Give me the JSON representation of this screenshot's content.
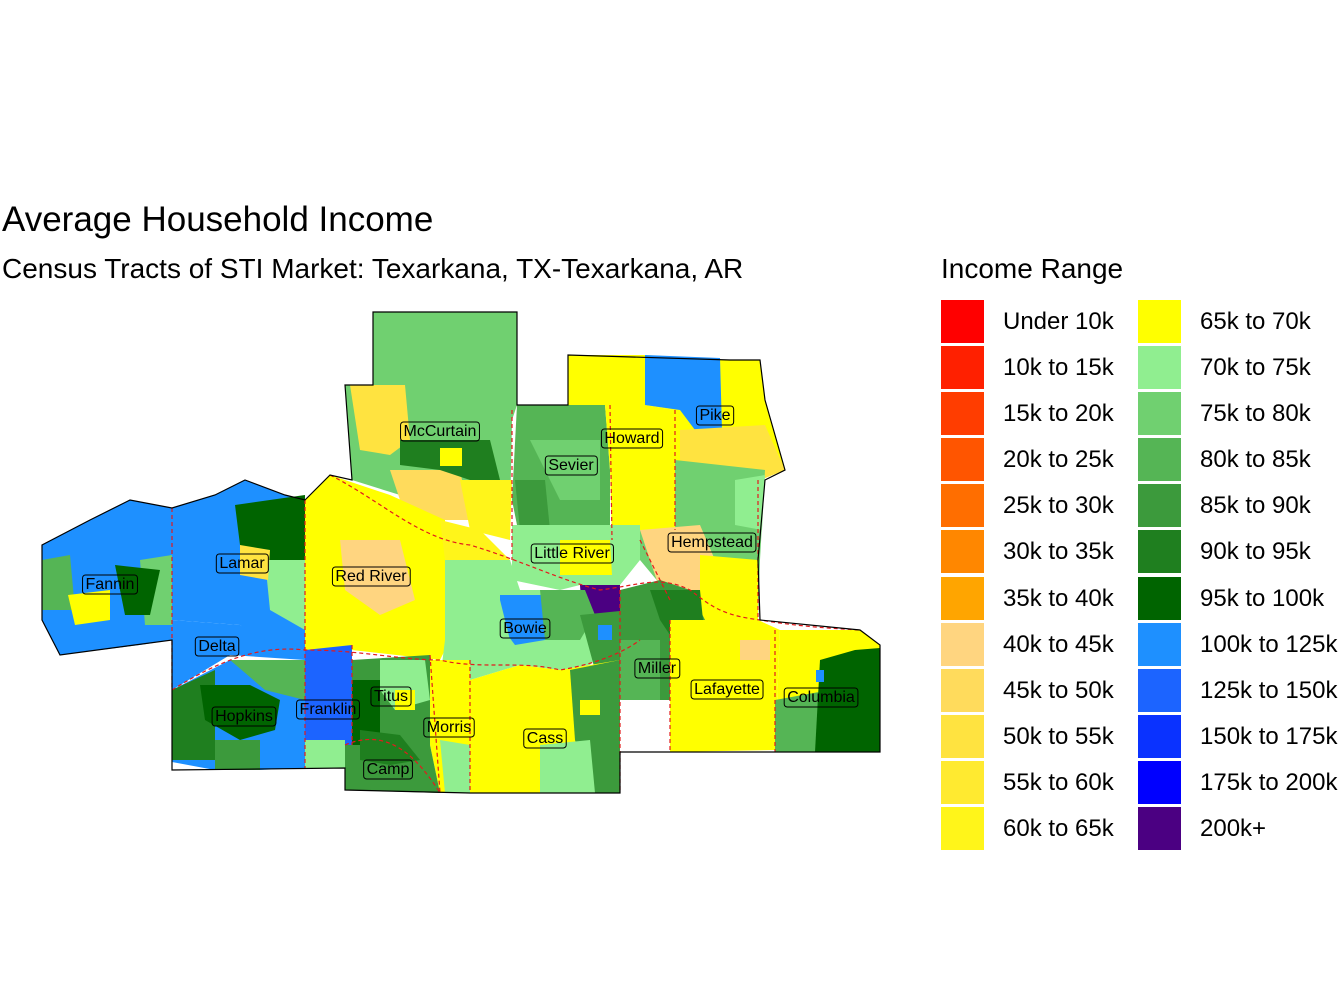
{
  "title": "Average Household Income",
  "subtitle": "Census Tracts of STI Market: Texarkana, TX-Texarkana, AR",
  "legend": {
    "title": "Income Range",
    "items": [
      {
        "label": "Under 10k",
        "color": "#FF0000"
      },
      {
        "label": "10k to 15k",
        "color": "#FF2000"
      },
      {
        "label": "15k to 20k",
        "color": "#FF3D00"
      },
      {
        "label": "20k to 25k",
        "color": "#FF5500"
      },
      {
        "label": "25k to 30k",
        "color": "#FF6E00"
      },
      {
        "label": "30k to 35k",
        "color": "#FF8700"
      },
      {
        "label": "35k to 40k",
        "color": "#FFA500"
      },
      {
        "label": "40k to 45k",
        "color": "#FFD580"
      },
      {
        "label": "45k to 50k",
        "color": "#FFDB5C"
      },
      {
        "label": "50k to 55k",
        "color": "#FFE340"
      },
      {
        "label": "55k to 60k",
        "color": "#FFEA30"
      },
      {
        "label": "60k to 65k",
        "color": "#FFF51A"
      },
      {
        "label": "65k to 70k",
        "color": "#FFFF00"
      },
      {
        "label": "70k to 75k",
        "color": "#90EE90"
      },
      {
        "label": "75k to 80k",
        "color": "#70D070"
      },
      {
        "label": "80k to 85k",
        "color": "#55B555"
      },
      {
        "label": "85k to 90k",
        "color": "#3C9A3C"
      },
      {
        "label": "90k to 95k",
        "color": "#1F7F1F"
      },
      {
        "label": "95k to 100k",
        "color": "#006400"
      },
      {
        "label": "100k to 125k",
        "color": "#1E90FF"
      },
      {
        "label": "125k to 150k",
        "color": "#1C64FF"
      },
      {
        "label": "150k to 175k",
        "color": "#0A32FF"
      },
      {
        "label": "175k to 200k",
        "color": "#0000FF"
      },
      {
        "label": "200k+",
        "color": "#4B0082"
      }
    ]
  },
  "counties": [
    {
      "name": "McCurtain"
    },
    {
      "name": "Sevier"
    },
    {
      "name": "Howard"
    },
    {
      "name": "Pike"
    },
    {
      "name": "Hempstead"
    },
    {
      "name": "Little River"
    },
    {
      "name": "Lamar"
    },
    {
      "name": "Fannin"
    },
    {
      "name": "Red River"
    },
    {
      "name": "Bowie"
    },
    {
      "name": "Delta"
    },
    {
      "name": "Miller"
    },
    {
      "name": "Lafayette"
    },
    {
      "name": "Columbia"
    },
    {
      "name": "Titus"
    },
    {
      "name": "Franklin"
    },
    {
      "name": "Hopkins"
    },
    {
      "name": "Morris"
    },
    {
      "name": "Cass"
    },
    {
      "name": "Camp"
    }
  ],
  "colors": {
    "county_border": "#E31A1C"
  }
}
